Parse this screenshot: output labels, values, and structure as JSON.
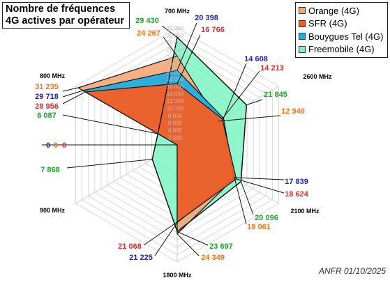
{
  "title": {
    "line1": "Nombre de fréquences",
    "line2": "4G actives par opérateur"
  },
  "footer": "ANFR 01/10/2025",
  "chart_data": {
    "type": "radar",
    "axes": [
      "700 MHz",
      "2600 MHz",
      "2100 MHz",
      "1800 MHz",
      "900 MHz",
      "800 MHz"
    ],
    "rlim": [
      0,
      32000
    ],
    "ticks": [
      "2 000",
      "4 000",
      "6 000",
      "8 000",
      "10 000",
      "12 000",
      "14 000",
      "16 000",
      "18 000",
      "20 000",
      "22 000",
      "24 000",
      "26 000",
      "28 000",
      "30 000",
      "32 000"
    ],
    "series": [
      {
        "name": "Orange (4G)",
        "color": "#f4a777",
        "label_color": "#ff6f17",
        "values": [
          24267,
          12940,
          18061,
          24349,
          0,
          31235
        ],
        "labels": [
          "24 267",
          "12 940",
          "18 061",
          "24 349",
          "0",
          "31 235"
        ]
      },
      {
        "name": "SFR (4G)",
        "color": "#ff5a19",
        "label_color": "#e8282d",
        "values": [
          16766,
          14213,
          18624,
          21068,
          0,
          28956
        ],
        "labels": [
          "16 766",
          "14 213",
          "18 624",
          "21 068",
          "0",
          "28 956"
        ]
      },
      {
        "name": "Bouygues Tel (4G)",
        "color": "#1aaee8",
        "label_color": "#1b1bd6",
        "values": [
          20398,
          14608,
          17839,
          21225,
          0,
          29718
        ],
        "labels": [
          "20 398",
          "14 608",
          "17 839",
          "21 225",
          "0",
          "29 718"
        ]
      },
      {
        "name": "Freemobile (4G)",
        "color": "#7ff5c3",
        "label_color": "#21a12a",
        "values": [
          29430,
          21845,
          20096,
          23697,
          7868,
          6087
        ],
        "labels": [
          "29 430",
          "21 845",
          "20 096",
          "23 697",
          "7 868",
          "6 087"
        ]
      }
    ]
  }
}
